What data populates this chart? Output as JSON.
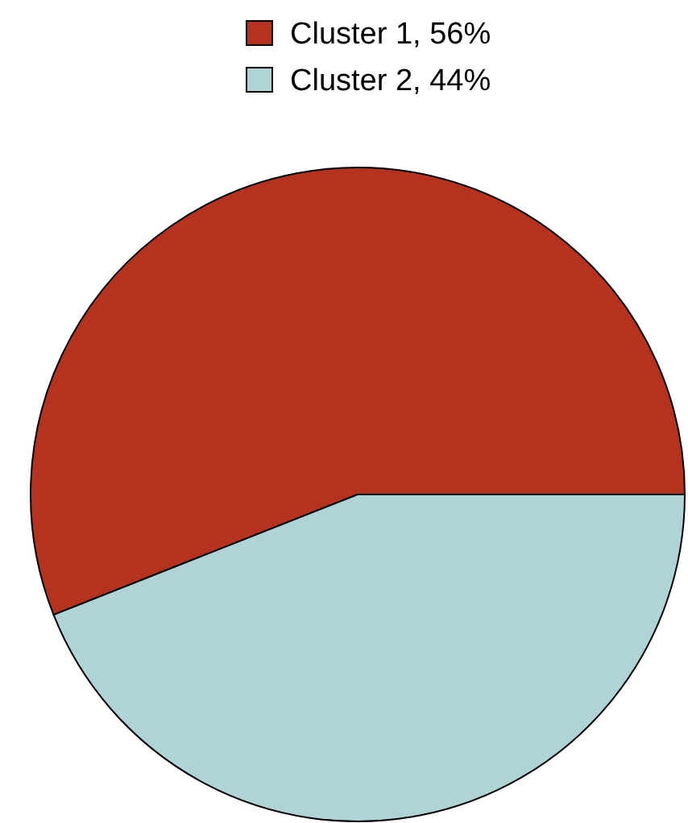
{
  "chart_data": {
    "type": "pie",
    "categories": [
      "Cluster 1, 56%",
      "Cluster 2, 44%"
    ],
    "values": [
      56,
      44
    ],
    "colors": [
      "#b5321f",
      "#b0d4d6"
    ],
    "legend": "top"
  }
}
